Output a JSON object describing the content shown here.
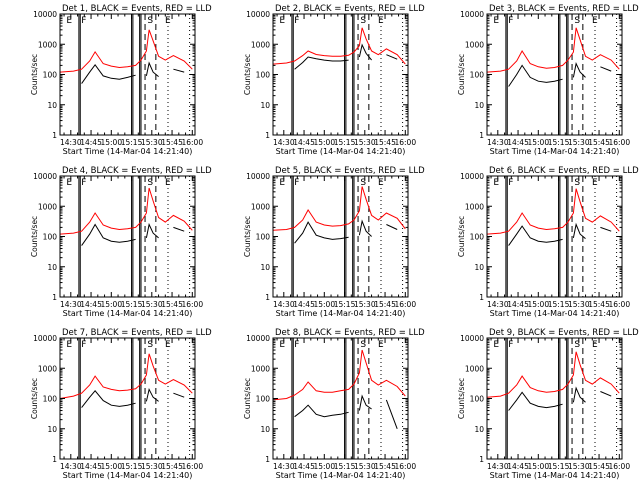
{
  "figure": {
    "xlabel": "Start Time (14-Mar-04 14:21:40)",
    "ylabel": "Counts/sec",
    "xticks": [
      "14:30",
      "14:45",
      "15:00",
      "15:15",
      "15:30",
      "15:45",
      "16:00"
    ],
    "yticks": [
      "1",
      "10",
      "100",
      "1000",
      "10000"
    ],
    "colors": {
      "events": "#000000",
      "lld": "#ff0000",
      "markers": "#000000"
    }
  },
  "chart_data": [
    {
      "type": "line",
      "title": "Det 1, BLACK = Events, RED = LLD",
      "xlabel": "Start Time (14-Mar-04 14:21:40)",
      "ylabel": "Counts/sec",
      "yscale": "log",
      "ylim": [
        1,
        10000
      ],
      "xlim": [
        "14:22",
        "16:02"
      ],
      "x": [
        "14:22",
        "14:32",
        "14:38",
        "14:44",
        "14:48",
        "14:54",
        "15:00",
        "15:06",
        "15:12",
        "15:18",
        "15:22",
        "15:26",
        "15:28",
        "15:31",
        "15:35",
        "15:40",
        "15:46",
        "15:54",
        "16:00"
      ],
      "series": [
        {
          "name": "Events",
          "values": [
            null,
            null,
            50,
            120,
            210,
            90,
            75,
            70,
            80,
            95,
            null,
            90,
            240,
            120,
            85,
            null,
            150,
            120,
            null
          ]
        },
        {
          "name": "LLD",
          "values": [
            120,
            130,
            150,
            280,
            560,
            230,
            190,
            170,
            180,
            200,
            300,
            600,
            3000,
            1300,
            400,
            300,
            420,
            280,
            150
          ]
        }
      ],
      "region_labels": [
        "E",
        "F",
        "S",
        "E"
      ]
    },
    {
      "type": "line",
      "title": "Det 2, BLACK = Events, RED = LLD",
      "xlabel": "Start Time (14-Mar-04 14:21:40)",
      "ylabel": "Counts/sec",
      "yscale": "log",
      "ylim": [
        1,
        10000
      ],
      "xlim": [
        "14:22",
        "16:02"
      ],
      "x": [
        "14:22",
        "14:32",
        "14:38",
        "14:44",
        "14:48",
        "14:54",
        "15:00",
        "15:06",
        "15:12",
        "15:18",
        "15:22",
        "15:26",
        "15:28",
        "15:31",
        "15:35",
        "15:40",
        "15:46",
        "15:54",
        "16:00"
      ],
      "series": [
        {
          "name": "Events",
          "values": [
            null,
            null,
            150,
            250,
            380,
            330,
            300,
            280,
            280,
            300,
            null,
            380,
            950,
            500,
            300,
            null,
            450,
            320,
            null
          ]
        },
        {
          "name": "LLD",
          "values": [
            220,
            240,
            280,
            420,
            600,
            460,
            420,
            400,
            400,
            430,
            550,
            900,
            3500,
            1500,
            600,
            450,
            700,
            450,
            220
          ]
        }
      ],
      "region_labels": [
        "E",
        "F",
        "S",
        "E"
      ]
    },
    {
      "type": "line",
      "title": "Det 3, BLACK = Events, RED = LLD",
      "xlabel": "Start Time (14-Mar-04 14:21:40)",
      "ylabel": "Counts/sec",
      "yscale": "log",
      "ylim": [
        1,
        10000
      ],
      "xlim": [
        "14:22",
        "16:02"
      ],
      "x": [
        "14:22",
        "14:32",
        "14:38",
        "14:44",
        "14:48",
        "14:54",
        "15:00",
        "15:06",
        "15:12",
        "15:18",
        "15:22",
        "15:26",
        "15:28",
        "15:31",
        "15:35",
        "15:40",
        "15:46",
        "15:54",
        "16:00"
      ],
      "series": [
        {
          "name": "Events",
          "values": [
            null,
            null,
            40,
            100,
            200,
            80,
            60,
            55,
            60,
            70,
            null,
            80,
            230,
            120,
            80,
            null,
            180,
            130,
            null
          ]
        },
        {
          "name": "LLD",
          "values": [
            120,
            130,
            150,
            280,
            600,
            230,
            180,
            160,
            170,
            200,
            300,
            550,
            3500,
            1400,
            400,
            300,
            450,
            300,
            150
          ]
        }
      ],
      "region_labels": [
        "E",
        "F",
        "S",
        "E"
      ]
    },
    {
      "type": "line",
      "title": "Det 4, BLACK = Events, RED = LLD",
      "xlabel": "Start Time (14-Mar-04 14:21:40)",
      "ylabel": "Counts/sec",
      "yscale": "log",
      "ylim": [
        1,
        10000
      ],
      "xlim": [
        "14:22",
        "16:02"
      ],
      "x": [
        "14:22",
        "14:32",
        "14:38",
        "14:44",
        "14:48",
        "14:54",
        "15:00",
        "15:06",
        "15:12",
        "15:18",
        "15:22",
        "15:26",
        "15:28",
        "15:31",
        "15:35",
        "15:40",
        "15:46",
        "15:54",
        "16:00"
      ],
      "series": [
        {
          "name": "Events",
          "values": [
            null,
            null,
            50,
            120,
            250,
            90,
            70,
            65,
            70,
            80,
            null,
            90,
            250,
            130,
            90,
            null,
            200,
            150,
            null
          ]
        },
        {
          "name": "LLD",
          "values": [
            120,
            130,
            150,
            300,
            600,
            240,
            190,
            170,
            180,
            200,
            300,
            600,
            4000,
            1500,
            420,
            300,
            500,
            320,
            160
          ]
        }
      ],
      "region_labels": [
        "E",
        "F",
        "S",
        "E"
      ]
    },
    {
      "type": "line",
      "title": "Det 5, BLACK = Events, RED = LLD",
      "xlabel": "Start Time (14-Mar-04 14:21:40)",
      "ylabel": "Counts/sec",
      "yscale": "log",
      "ylim": [
        1,
        10000
      ],
      "xlim": [
        "14:22",
        "16:02"
      ],
      "x": [
        "14:22",
        "14:32",
        "14:38",
        "14:44",
        "14:48",
        "14:54",
        "15:00",
        "15:06",
        "15:12",
        "15:18",
        "15:22",
        "15:26",
        "15:28",
        "15:31",
        "15:35",
        "15:40",
        "15:46",
        "15:54",
        "16:00"
      ],
      "series": [
        {
          "name": "Events",
          "values": [
            null,
            null,
            60,
            130,
            300,
            110,
            90,
            80,
            85,
            95,
            null,
            110,
            320,
            150,
            100,
            null,
            250,
            170,
            null
          ]
        },
        {
          "name": "LLD",
          "values": [
            160,
            170,
            200,
            350,
            750,
            300,
            240,
            220,
            230,
            260,
            350,
            700,
            4500,
            1700,
            500,
            350,
            600,
            400,
            180
          ]
        }
      ],
      "region_labels": [
        "E",
        "F",
        "S",
        "E"
      ]
    },
    {
      "type": "line",
      "title": "Det 6, BLACK = Events, RED = LLD",
      "xlabel": "Start Time (14-Mar-04 14:21:40)",
      "ylabel": "Counts/sec",
      "yscale": "log",
      "ylim": [
        1,
        10000
      ],
      "xlim": [
        "14:22",
        "16:02"
      ],
      "x": [
        "14:22",
        "14:32",
        "14:38",
        "14:44",
        "14:48",
        "14:54",
        "15:00",
        "15:06",
        "15:12",
        "15:18",
        "15:22",
        "15:26",
        "15:28",
        "15:31",
        "15:35",
        "15:40",
        "15:46",
        "15:54",
        "16:00"
      ],
      "series": [
        {
          "name": "Events",
          "values": [
            null,
            null,
            50,
            120,
            220,
            90,
            70,
            65,
            70,
            80,
            null,
            90,
            250,
            120,
            85,
            null,
            200,
            150,
            null
          ]
        },
        {
          "name": "LLD",
          "values": [
            120,
            130,
            150,
            300,
            600,
            240,
            190,
            170,
            180,
            200,
            300,
            600,
            3800,
            1400,
            400,
            300,
            480,
            300,
            150
          ]
        }
      ],
      "region_labels": [
        "E",
        "F",
        "S",
        "E"
      ]
    },
    {
      "type": "line",
      "title": "Det 7, BLACK = Events, RED = LLD",
      "xlabel": "Start Time (14-Mar-04 14:21:40)",
      "ylabel": "Counts/sec",
      "yscale": "log",
      "ylim": [
        1,
        10000
      ],
      "xlim": [
        "14:22",
        "16:02"
      ],
      "x": [
        "14:22",
        "14:32",
        "14:38",
        "14:44",
        "14:48",
        "14:54",
        "15:00",
        "15:06",
        "15:12",
        "15:18",
        "15:22",
        "15:26",
        "15:28",
        "15:31",
        "15:35",
        "15:40",
        "15:46",
        "15:54",
        "16:00"
      ],
      "series": [
        {
          "name": "Events",
          "values": [
            null,
            null,
            50,
            110,
            180,
            85,
            60,
            55,
            60,
            70,
            null,
            80,
            200,
            110,
            80,
            null,
            150,
            110,
            null
          ]
        },
        {
          "name": "LLD",
          "values": [
            100,
            120,
            150,
            280,
            550,
            240,
            200,
            180,
            190,
            210,
            300,
            600,
            3000,
            1200,
            400,
            300,
            420,
            280,
            150
          ]
        }
      ],
      "region_labels": [
        "E",
        "F",
        "S",
        "E"
      ]
    },
    {
      "type": "line",
      "title": "Det 8, BLACK = Events, RED = LLD",
      "xlabel": "Start Time (14-Mar-04 14:21:40)",
      "ylabel": "Counts/sec",
      "yscale": "log",
      "ylim": [
        1,
        10000
      ],
      "xlim": [
        "14:22",
        "16:02"
      ],
      "x": [
        "14:22",
        "14:32",
        "14:38",
        "14:44",
        "14:48",
        "14:54",
        "15:00",
        "15:06",
        "15:12",
        "15:18",
        "15:22",
        "15:26",
        "15:28",
        "15:31",
        "15:35",
        "15:40",
        "15:46",
        "15:54",
        "16:00"
      ],
      "series": [
        {
          "name": "Events",
          "values": [
            null,
            null,
            25,
            40,
            60,
            30,
            25,
            28,
            30,
            35,
            null,
            40,
            120,
            60,
            45,
            null,
            90,
            10,
            null
          ]
        },
        {
          "name": "LLD",
          "values": [
            90,
            100,
            130,
            200,
            350,
            180,
            160,
            160,
            180,
            200,
            300,
            700,
            4000,
            1500,
            400,
            280,
            400,
            250,
            120
          ]
        }
      ],
      "region_labels": [
        "E",
        "F",
        "S",
        "E"
      ]
    },
    {
      "type": "line",
      "title": "Det 9, BLACK = Events, RED = LLD",
      "xlabel": "Start Time (14-Mar-04 14:21:40)",
      "ylabel": "Counts/sec",
      "yscale": "log",
      "ylim": [
        1,
        10000
      ],
      "xlim": [
        "14:22",
        "16:02"
      ],
      "x": [
        "14:22",
        "14:32",
        "14:38",
        "14:44",
        "14:48",
        "14:54",
        "15:00",
        "15:06",
        "15:12",
        "15:18",
        "15:22",
        "15:26",
        "15:28",
        "15:31",
        "15:35",
        "15:40",
        "15:46",
        "15:54",
        "16:00"
      ],
      "series": [
        {
          "name": "Events",
          "values": [
            null,
            null,
            40,
            90,
            160,
            70,
            55,
            50,
            55,
            65,
            null,
            75,
            220,
            110,
            75,
            null,
            170,
            120,
            null
          ]
        },
        {
          "name": "LLD",
          "values": [
            110,
            120,
            150,
            280,
            550,
            230,
            180,
            160,
            170,
            200,
            300,
            600,
            3500,
            1300,
            400,
            300,
            480,
            300,
            150
          ]
        }
      ],
      "region_labels": [
        "E",
        "F",
        "S",
        "E"
      ]
    }
  ]
}
